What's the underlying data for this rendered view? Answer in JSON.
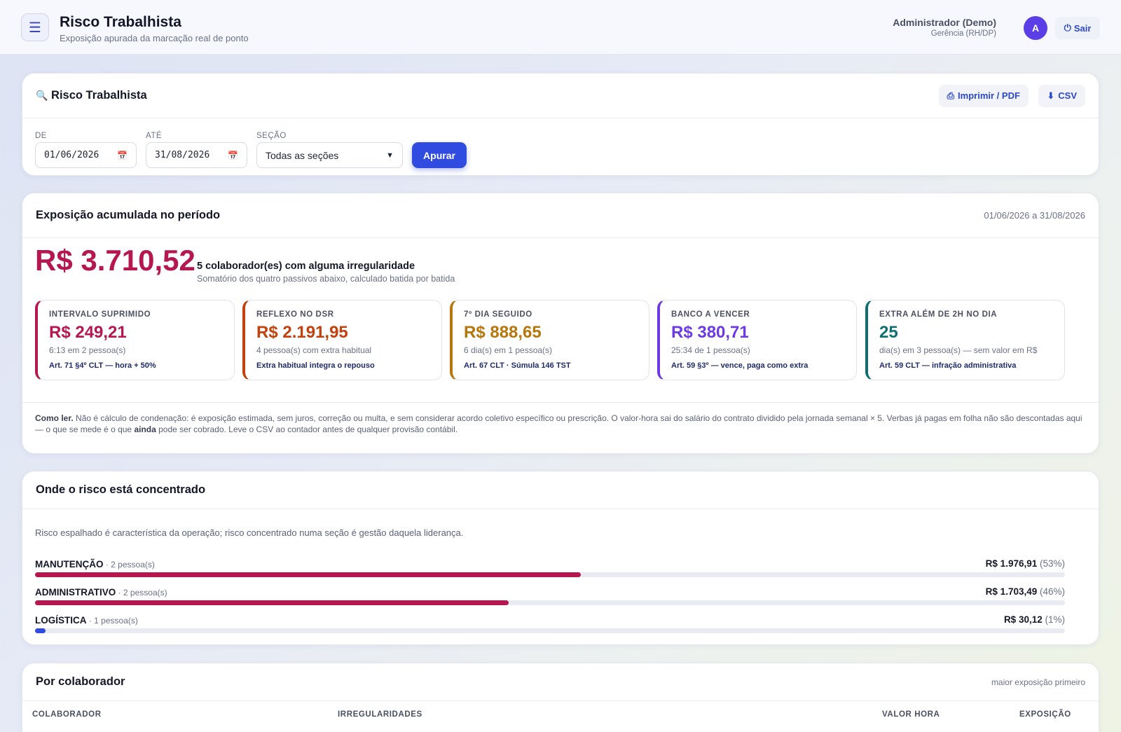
{
  "header": {
    "title": "Risco Trabalhista",
    "subtitle": "Exposição apurada da marcação real de ponto",
    "user_name": "Administrador (Demo)",
    "user_role": "Gerência (RH/DP)",
    "avatar_initial": "A",
    "logout_label": "Sair"
  },
  "filters": {
    "card_title": "Risco Trabalhista",
    "print_label": "Imprimir / PDF",
    "csv_label": "CSV",
    "from_label": "DE",
    "from_value": "01/06/2026",
    "to_label": "ATÉ",
    "to_value": "31/08/2026",
    "section_label": "SEÇÃO",
    "section_value": "Todas as seções",
    "apply_label": "Apurar"
  },
  "summary": {
    "title": "Exposição acumulada no período",
    "period": "01/06/2026 a 31/08/2026",
    "total": "R$ 3.710,52",
    "collaborators": "5 colaborador(es) com alguma irregularidade",
    "description": "Somatório dos quatro passivos abaixo, calculado batida por batida",
    "kpis": [
      {
        "label": "Intervalo suprimido",
        "value": "R$ 249,21",
        "sub": "6:13 em 2 pessoa(s)",
        "ref": "Art. 71 §4º CLT — hora + 50%",
        "color": "#b5174e"
      },
      {
        "label": "Reflexo no DSR",
        "value": "R$ 2.191,95",
        "sub": "4 pessoa(s) com extra habitual",
        "ref": "Extra habitual integra o repouso",
        "color": "#c2410c"
      },
      {
        "label": "7º dia seguido",
        "value": "R$ 888,65",
        "sub": "6 dia(s) em 1 pessoa(s)",
        "ref": "Art. 67 CLT · Súmula 146 TST",
        "color": "#b7760a"
      },
      {
        "label": "Banco a vencer",
        "value": "R$ 380,71",
        "sub": "25:34 de 1 pessoa(s)",
        "ref": "Art. 59 §3º — vence, paga como extra",
        "color": "#6d3ae6"
      },
      {
        "label": "Extra além de 2h no dia",
        "value": "25",
        "sub": "dia(s) em 3 pessoa(s) — sem valor em R$",
        "ref": "Art. 59 CLT — infração administrativa",
        "color": "#0f6f73"
      }
    ],
    "note_lead": "Como ler.",
    "note_text_1": " Não é cálculo de condenação: é exposição estimada, sem juros, correção ou multa, e sem considerar acordo coletivo específico ou prescrição. O valor-hora sai do salário do contrato dividido pela jornada semanal × 5. Verbas já pagas em folha não são descontadas aqui — o que se mede é o que ",
    "note_emph": "ainda",
    "note_text_2": " pode ser cobrado. Leve o CSV ao contador antes de qualquer provisão contábil."
  },
  "concentration": {
    "title": "Onde o risco está concentrado",
    "intro": "Risco espalhado é característica da operação; risco concentrado numa seção é gestão daquela liderança.",
    "rows": [
      {
        "name": "MANUTENÇÃO",
        "count": " · 2 pessoa(s)",
        "value": "R$ 1.976,91",
        "pct": " (53%)",
        "share": 0.53,
        "color": "#b5174e"
      },
      {
        "name": "ADMINISTRATIVO",
        "count": " · 2 pessoa(s)",
        "value": "R$ 1.703,49",
        "pct": " (46%)",
        "share": 0.46,
        "color": "#b5174e"
      },
      {
        "name": "LOGÍSTICA",
        "count": " · 1 pessoa(s)",
        "value": "R$ 30,12",
        "pct": " (1%)",
        "share": 0.01,
        "color": "#2f4be0"
      }
    ]
  },
  "collaborators": {
    "title": "Por colaborador",
    "meta": "maior exposição primeiro",
    "columns": [
      "COLABORADOR",
      "IRREGULARIDADES",
      "VALOR HORA",
      "EXPOSIÇÃO"
    ]
  },
  "icons": {
    "menu": "hamburger-icon",
    "power": "power-icon",
    "binoculars": "binoculars-icon",
    "printer": "printer-icon",
    "download": "download-icon",
    "calendar": "calendar-icon",
    "chevron": "chevron-down-icon"
  }
}
